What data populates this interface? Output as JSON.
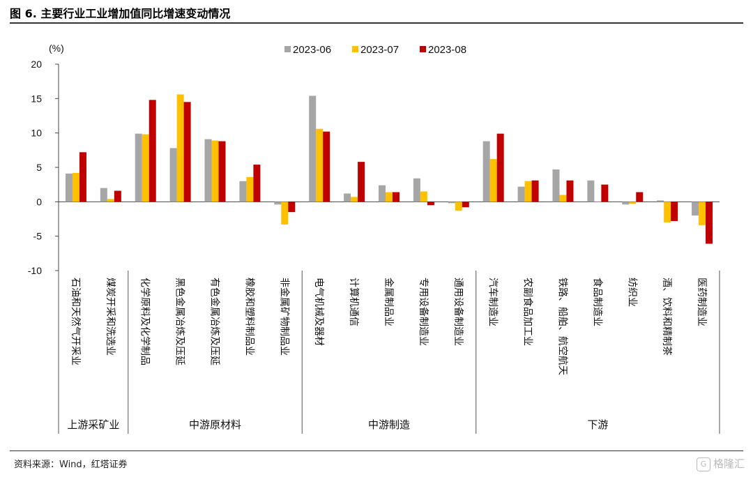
{
  "figure": {
    "title": "图 6. 主要行业工业增加值同比增速变动情况",
    "source": "资料来源：Wind，红塔证券",
    "watermark": "格隆汇"
  },
  "chart_data": {
    "type": "bar",
    "ylabel": "(%)",
    "ylim": [
      -10,
      20
    ],
    "yticks": [
      -10,
      -5,
      0,
      5,
      10,
      15,
      20
    ],
    "legend_position": "top",
    "categories": [
      "石油和天然气开采业",
      "煤炭开采和洗选业",
      "化学原料及化学制品",
      "黑色金属冶炼及压延",
      "有色金属冶炼及压延",
      "橡胶和塑料制品业",
      "非金属矿物制品业",
      "电气机械及器材",
      "计算机通信",
      "金属制品业",
      "专用设备制造业",
      "通用设备制造业",
      "汽车制造业",
      "农副食品加工业",
      "铁路、船舶、航空航天",
      "食品制造业",
      "纺织业",
      "酒、饮料和精制茶",
      "医药制造业"
    ],
    "groups": [
      {
        "label": "上游采矿业",
        "start": 0,
        "end": 1
      },
      {
        "label": "中游原材料",
        "start": 2,
        "end": 6
      },
      {
        "label": "中游制造",
        "start": 7,
        "end": 11
      },
      {
        "label": "下游",
        "start": 12,
        "end": 18
      }
    ],
    "series": [
      {
        "name": "2023-06",
        "color": "#a6a6a6",
        "values": [
          4.1,
          2.0,
          9.9,
          7.8,
          9.1,
          3.0,
          -0.4,
          15.4,
          1.2,
          2.4,
          3.4,
          -0.2,
          8.8,
          2.2,
          4.7,
          3.1,
          -0.4,
          0.2,
          -2.0
        ]
      },
      {
        "name": "2023-07",
        "color": "#ffc000",
        "values": [
          4.2,
          0.4,
          9.8,
          15.6,
          8.9,
          3.6,
          -3.3,
          10.6,
          0.7,
          1.4,
          1.5,
          -1.3,
          6.2,
          3.0,
          1.0,
          0.0,
          -0.3,
          -3.0,
          -3.4
        ]
      },
      {
        "name": "2023-08",
        "color": "#c00000",
        "values": [
          7.2,
          1.6,
          14.8,
          14.5,
          8.8,
          5.4,
          -1.5,
          10.2,
          5.8,
          1.4,
          -0.5,
          -0.8,
          9.9,
          3.1,
          3.1,
          2.5,
          1.4,
          -2.8,
          -6.1
        ]
      }
    ]
  }
}
